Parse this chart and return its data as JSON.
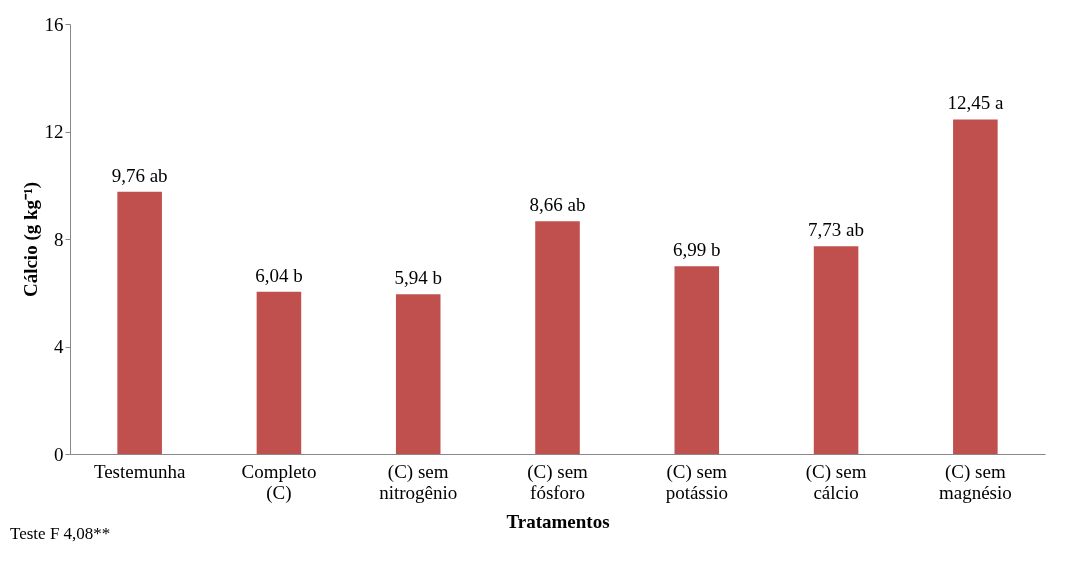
{
  "chart_data": {
    "type": "bar",
    "xlabel": "Tratamentos",
    "ylabel": "Cálcio (g kg⁻¹)",
    "categories": [
      "Testemunha",
      "Completo\n(C)",
      "(C) sem\nnitrogênio",
      "(C) sem\nfósforo",
      "(C) sem\npotássio",
      "(C) sem\ncálcio",
      "(C) sem\nmagnésio"
    ],
    "values": [
      9.76,
      6.04,
      5.94,
      8.66,
      6.99,
      7.73,
      12.45
    ],
    "value_labels": [
      "9,76 ab",
      "6,04 b",
      "5,94 b",
      "8,66 ab",
      "6,99 b",
      "7,73 ab",
      "12,45 a"
    ],
    "color": "#c0504d",
    "ylim": [
      0,
      16
    ],
    "yticks": [
      0,
      4,
      8,
      12,
      16
    ],
    "grid": false,
    "annotations": [
      "Teste F 4,08**"
    ]
  }
}
